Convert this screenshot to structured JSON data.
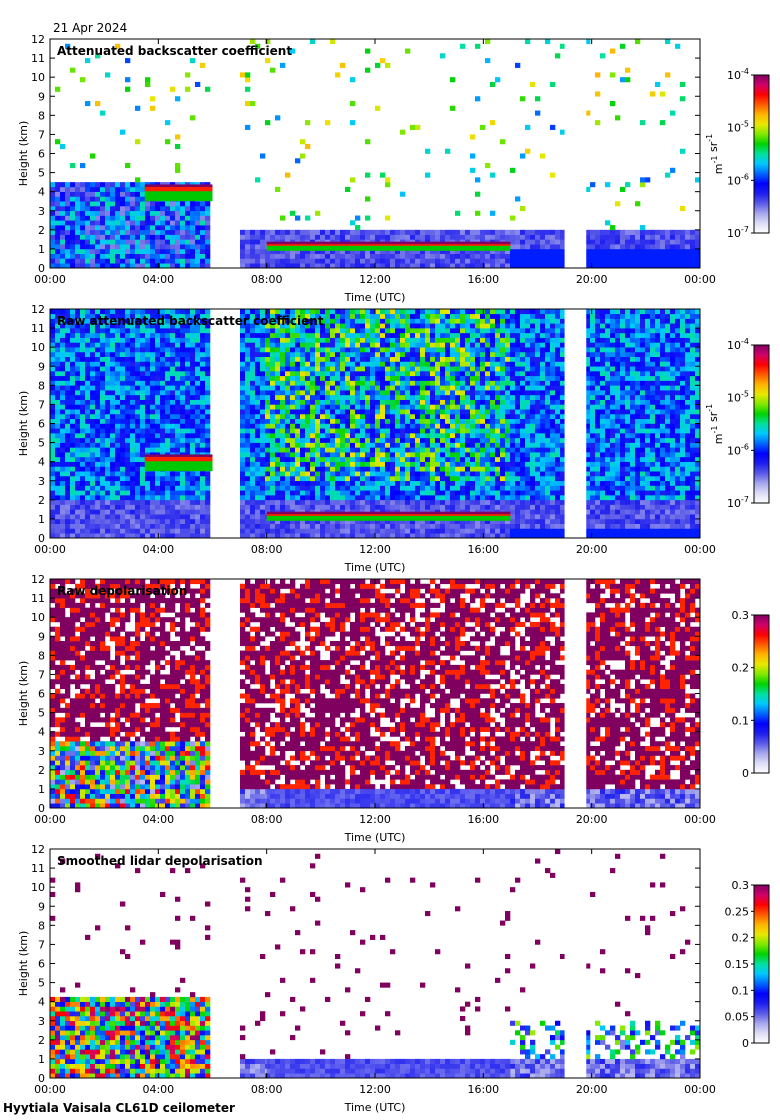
{
  "date": "21 Apr 2024",
  "footer": "Hyytiala Vaisala CL61D ceilometer",
  "colors": {
    "ramp": [
      "#ffffff",
      "#dcdcf5",
      "#a6a6ee",
      "#5a5ae8",
      "#1e1ef0",
      "#0000ff",
      "#0066ff",
      "#00c8ff",
      "#00e0a0",
      "#00d200",
      "#80e800",
      "#e8e800",
      "#ffb400",
      "#ff5a00",
      "#ff0000",
      "#d0006a",
      "#800060"
    ],
    "frame": "#000000"
  },
  "chart_data": [
    {
      "type": "heatmap",
      "title": "Attenuated backscatter coefficient",
      "xlabel": "Time (UTC)",
      "ylabel": "Height (km)",
      "xlim": [
        0,
        24
      ],
      "ylim": [
        0,
        12
      ],
      "x_ticks": [
        "00:00",
        "04:00",
        "08:00",
        "12:00",
        "16:00",
        "20:00",
        "00:00"
      ],
      "y_ticks": [
        "0",
        "1",
        "2",
        "3",
        "4",
        "5",
        "6",
        "7",
        "8",
        "9",
        "10",
        "11",
        "12"
      ],
      "colorbar": {
        "scale": "log",
        "ticks": [
          "10^-7",
          "10^-6",
          "10^-5",
          "10^-4"
        ],
        "unit": "m^-1 sr^-1"
      },
      "data_gaps_hours": [
        [
          6.0,
          7.0
        ],
        [
          19.0,
          19.8
        ]
      ],
      "cloud_layers": [
        {
          "start_h": 8.0,
          "end_h": 17.0,
          "base_km": 0.9,
          "top_km": 1.3
        },
        {
          "start_h": 3.5,
          "end_h": 6.0,
          "base_km": 3.5,
          "top_km": 4.3
        }
      ]
    },
    {
      "type": "heatmap",
      "title": "Raw attenuated backscatter coefficient",
      "xlabel": "Time (UTC)",
      "ylabel": "Height (km)",
      "xlim": [
        0,
        24
      ],
      "ylim": [
        0,
        12
      ],
      "x_ticks": [
        "00:00",
        "04:00",
        "08:00",
        "12:00",
        "16:00",
        "20:00",
        "00:00"
      ],
      "y_ticks": [
        "0",
        "1",
        "2",
        "3",
        "4",
        "5",
        "6",
        "7",
        "8",
        "9",
        "10",
        "11",
        "12"
      ],
      "colorbar": {
        "scale": "log",
        "ticks": [
          "10^-7",
          "10^-6",
          "10^-5",
          "10^-4"
        ],
        "unit": "m^-1 sr^-1"
      },
      "data_gaps_hours": [
        [
          6.0,
          7.0
        ],
        [
          19.0,
          19.8
        ]
      ]
    },
    {
      "type": "heatmap",
      "title": "Raw depolarisation",
      "xlabel": "Time (UTC)",
      "ylabel": "Height (km)",
      "xlim": [
        0,
        24
      ],
      "ylim": [
        0,
        12
      ],
      "x_ticks": [
        "00:00",
        "04:00",
        "08:00",
        "12:00",
        "16:00",
        "20:00",
        "00:00"
      ],
      "y_ticks": [
        "0",
        "1",
        "2",
        "3",
        "4",
        "5",
        "6",
        "7",
        "8",
        "9",
        "10",
        "11",
        "12"
      ],
      "colorbar": {
        "scale": "linear",
        "range": [
          0,
          0.3
        ],
        "ticks": [
          "0",
          "0.1",
          "0.2",
          "0.3"
        ],
        "unit": ""
      },
      "data_gaps_hours": [
        [
          6.0,
          7.0
        ],
        [
          19.0,
          19.8
        ]
      ]
    },
    {
      "type": "heatmap",
      "title": "Smoothed lidar depolarisation",
      "xlabel": "Time (UTC)",
      "ylabel": "Height (km)",
      "xlim": [
        0,
        24
      ],
      "ylim": [
        0,
        12
      ],
      "x_ticks": [
        "00:00",
        "04:00",
        "08:00",
        "12:00",
        "16:00",
        "20:00",
        "00:00"
      ],
      "y_ticks": [
        "0",
        "1",
        "2",
        "3",
        "4",
        "5",
        "6",
        "7",
        "8",
        "9",
        "10",
        "11",
        "12"
      ],
      "colorbar": {
        "scale": "linear",
        "range": [
          0,
          0.3
        ],
        "ticks": [
          "0",
          "0.05",
          "0.1",
          "0.15",
          "0.2",
          "0.25",
          "0.3"
        ],
        "unit": ""
      },
      "data_gaps_hours": [
        [
          6.0,
          7.0
        ],
        [
          19.0,
          19.8
        ]
      ]
    }
  ]
}
